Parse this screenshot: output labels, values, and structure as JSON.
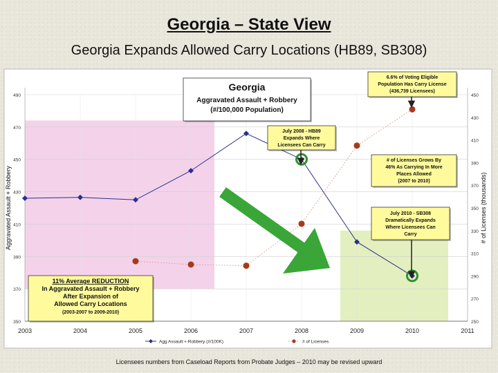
{
  "page": {
    "title": "Georgia – State View",
    "subtitle": "Georgia Expands Allowed Carry Locations (HB89, SB308)",
    "source_note": "Licensees numbers from Caseload Reports from Probate Judges – 2010 may be revised upward"
  },
  "colors": {
    "crime_series": "#2b2f8c",
    "licenses_series": "#a8391c",
    "pink_region": "#f4d2ea",
    "green_region": "#e3efbf",
    "callout_fill": "#fffb9c",
    "arrow": "#3aa637",
    "marker_ring": "#2e8f2e"
  },
  "chart_data": {
    "type": "line",
    "title": "Georgia",
    "subtitle_lines": [
      "Aggravated Assault + Robbery",
      "(#/100,000 Population)"
    ],
    "ylabel": "Aggravated Assault + Robbery",
    "y2label": "# of Licenses (thousands)",
    "x_ticks": [
      "2003",
      "2004",
      "2005",
      "2006",
      "2007",
      "2008",
      "2009",
      "2010",
      "2011"
    ],
    "xlim": [
      2003,
      2011
    ],
    "ylim": [
      350,
      490
    ],
    "y_ticks": [
      "350",
      "370",
      "390",
      "410",
      "430",
      "450",
      "470",
      "490"
    ],
    "y2lim": [
      250,
      450
    ],
    "y2_ticks": [
      "250",
      "270",
      "290",
      "310",
      "330",
      "350",
      "370",
      "390",
      "410",
      "430",
      "450"
    ],
    "legend": [
      "Agg Assault + Robbery (#/100K)",
      "# of Licenses"
    ],
    "legend_position": "bottom",
    "series": [
      {
        "name": "Agg Assault + Robbery (#/100K)",
        "axis": "left",
        "x": [
          2003,
          2004,
          2005,
          2006,
          2007,
          2008,
          2009,
          2010
        ],
        "y": [
          426,
          426.5,
          425,
          443,
          466,
          450,
          399,
          378
        ]
      },
      {
        "name": "# of Licenses",
        "axis": "right",
        "x": [
          2005,
          2006,
          2007,
          2008,
          2009,
          2010
        ],
        "y": [
          303,
          300,
          299,
          336,
          405,
          437
        ]
      }
    ],
    "annotations": {
      "chart_title_box": {
        "lines": [
          "Georgia",
          "Aggravated Assault + Robbery",
          "(#/100,000 Population)"
        ]
      },
      "voting_box": {
        "lines": [
          "6.6% of Voting Eligible",
          "Population Has Carry License",
          "(436,739 Licensees)"
        ]
      },
      "hb89_box": {
        "lines": [
          "July 2008 - HB89",
          "Expands Where",
          "Licensees Can Carry"
        ]
      },
      "growth_box": {
        "lines": [
          "# of Licenses Grows By",
          "46% As Carrying In More",
          "Places Allowed",
          "(2007 to 2010)"
        ]
      },
      "sb308_box": {
        "lines": [
          "July 2010 - SB308",
          "Dramatically Expands",
          "Where Licensees Can",
          "Carry"
        ]
      },
      "reduction_box": {
        "lines": [
          "11% Average REDUCTION",
          "In Aggravated Assault + Robbery",
          "After Expansion of",
          "Allowed Carry Locations",
          "(2003-2007 to 2009-2010)"
        ]
      }
    }
  }
}
